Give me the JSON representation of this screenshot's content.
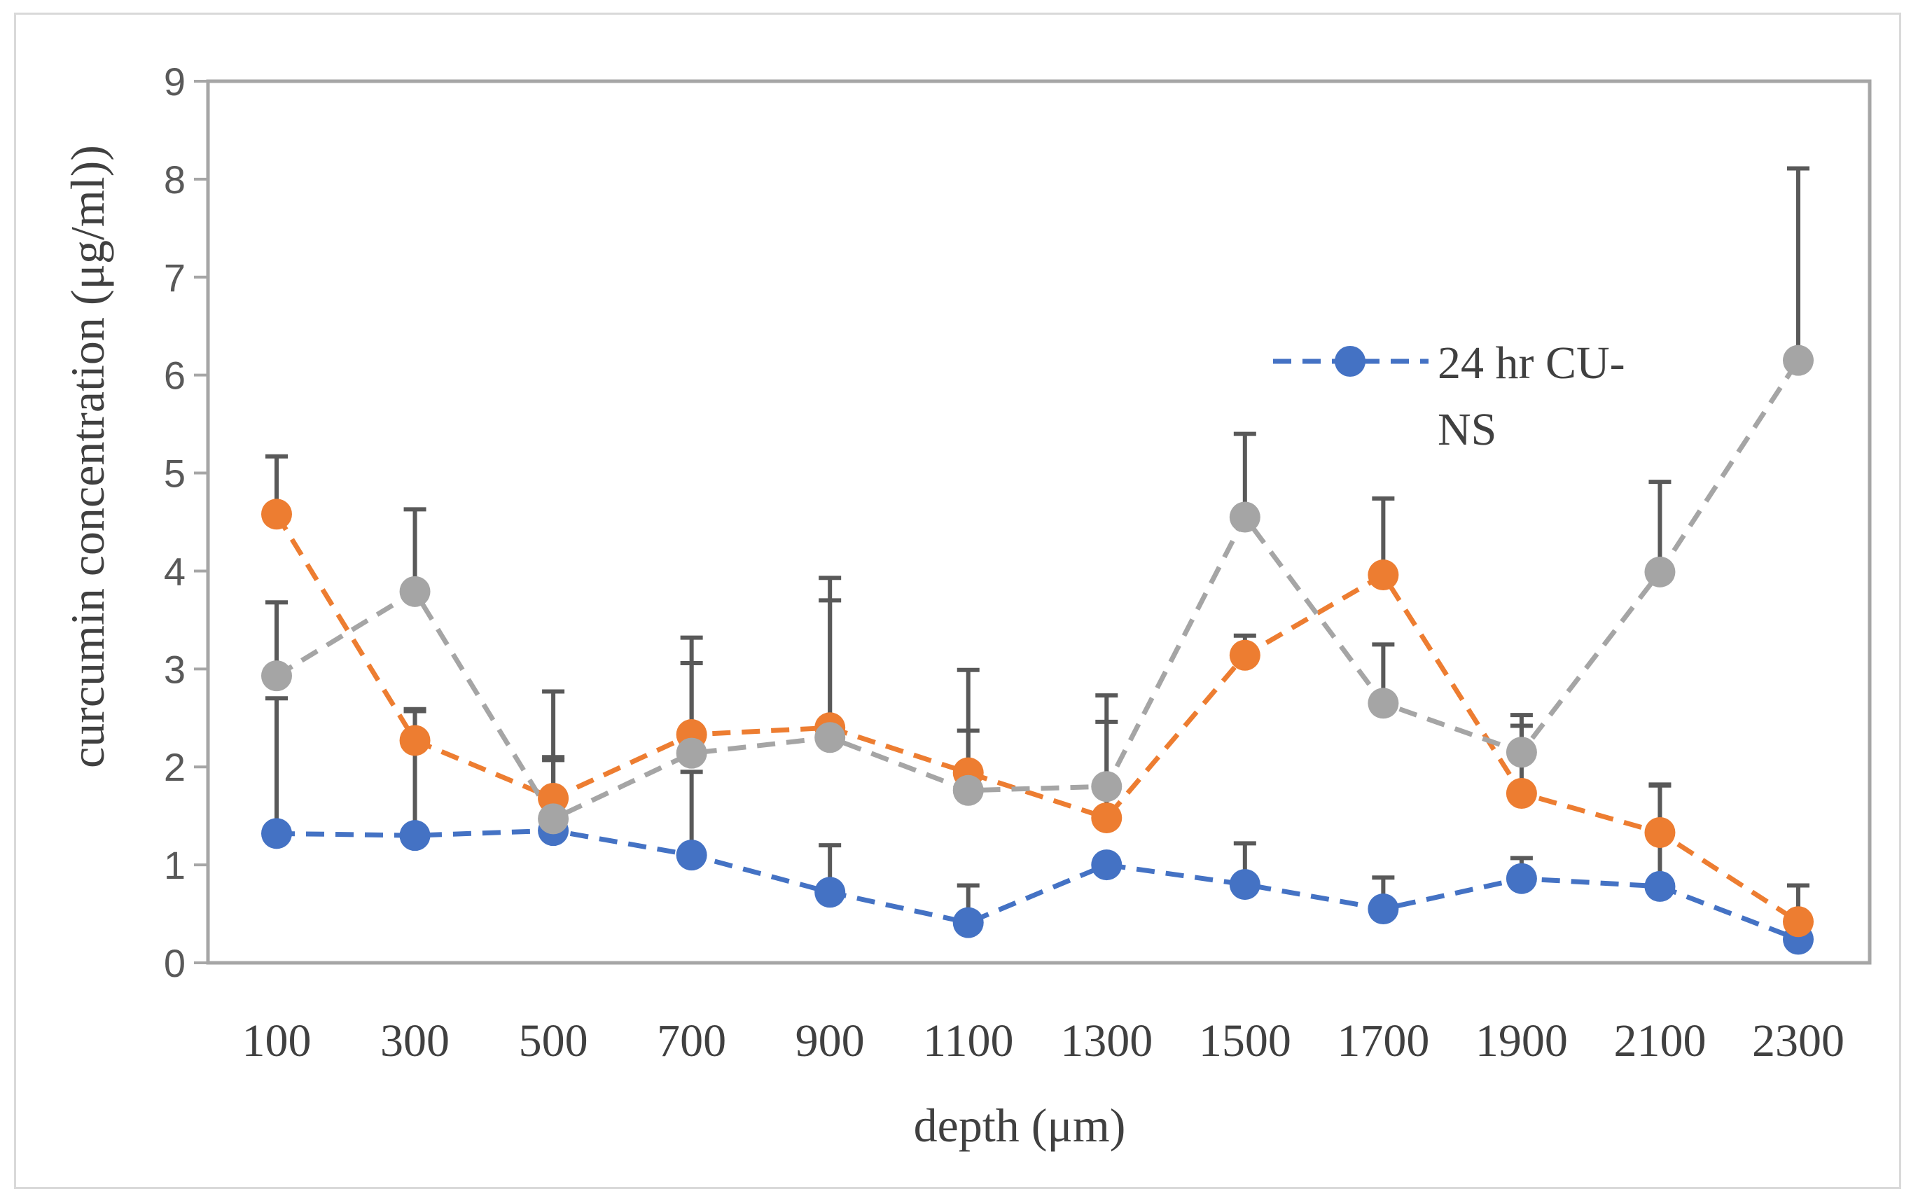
{
  "chart_data": {
    "type": "line",
    "title": "",
    "xlabel": "depth (μm)",
    "ylabel": "curcumin concentration (μg/ml))",
    "categories": [
      "100",
      "300",
      "500",
      "700",
      "900",
      "1100",
      "1300",
      "1500",
      "1700",
      "1900",
      "2100",
      "2300"
    ],
    "ylim": [
      0,
      9
    ],
    "yticks": [
      "0",
      "1",
      "2",
      "3",
      "4",
      "5",
      "6",
      "7",
      "8",
      "9"
    ],
    "grid": false,
    "legend_position": "right",
    "series": [
      {
        "name": "24 hr CU-NS",
        "legend_lines": [
          "24 hr CU-",
          "NS"
        ],
        "color": "#4472c4",
        "values": [
          1.32,
          1.3,
          1.35,
          1.1,
          0.72,
          0.41,
          1.0,
          0.8,
          0.55,
          0.86,
          0.78,
          0.24
        ],
        "errors": [
          1.38,
          1.27,
          0.72,
          0.85,
          0.48,
          0.38,
          0.0,
          0.42,
          0.32,
          0.21,
          1.03,
          0.55
        ]
      },
      {
        "name": "",
        "color": "#ed7d31",
        "values": [
          4.58,
          2.27,
          1.68,
          2.33,
          2.4,
          1.94,
          1.48,
          3.14,
          3.96,
          1.73,
          1.33,
          0.42
        ],
        "errors": [
          0.59,
          0.32,
          0.42,
          0.73,
          1.3,
          0.43,
          0.98,
          0.2,
          0.78,
          0.69,
          0.49,
          0.37
        ]
      },
      {
        "name": "",
        "color": "#a5a5a5",
        "values": [
          2.93,
          3.79,
          1.47,
          2.14,
          2.3,
          1.76,
          1.8,
          4.55,
          2.65,
          2.15,
          3.99,
          6.15
        ],
        "errors": [
          0.75,
          0.84,
          1.3,
          1.18,
          1.63,
          1.23,
          0.93,
          0.85,
          0.6,
          0.38,
          0.92,
          1.96
        ]
      }
    ],
    "axis_color": "#a6a6a6",
    "errorbar_color": "#595959"
  }
}
